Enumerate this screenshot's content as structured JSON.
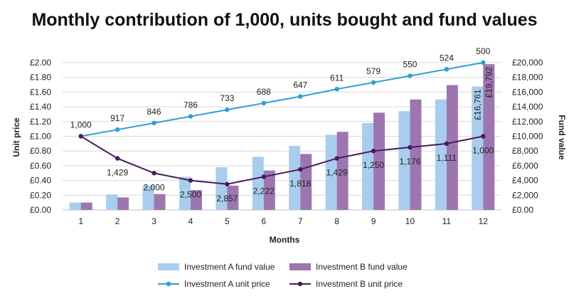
{
  "chart_data": {
    "type": "bar",
    "title": "Monthly contribution of 1,000, units bought and fund values",
    "xlabel": "Months",
    "ylabel": "Unit price",
    "y2label": "Fund value",
    "categories": [
      "1",
      "2",
      "3",
      "4",
      "5",
      "6",
      "7",
      "8",
      "9",
      "10",
      "11",
      "12"
    ],
    "ylim": [
      0,
      2.0
    ],
    "y_ticks": [
      "£0.00",
      "£0.20",
      "£0.40",
      "£0.60",
      "£0.80",
      "£1.00",
      "£1.20",
      "£1.40",
      "£1.60",
      "£1.80",
      "£2.00"
    ],
    "y2lim": [
      0,
      20000
    ],
    "y2_ticks": [
      "£0.00",
      "£2,000",
      "£4,000",
      "£6,000",
      "£8,000",
      "£10,000",
      "£12,000",
      "£14,000",
      "£16,000",
      "£18,000",
      "£20,000"
    ],
    "bar_series": [
      {
        "name": "Investment A fund value",
        "color": "#a9cdee",
        "values": [
          1000,
          2100,
          3300,
          4500,
          5800,
          7200,
          8700,
          10200,
          11800,
          13400,
          15000,
          16761
        ]
      },
      {
        "name": "Investment B fund value",
        "color": "#9d76b0",
        "values": [
          1000,
          1700,
          2150,
          2700,
          3300,
          5350,
          7600,
          10600,
          13200,
          15000,
          16950,
          19792
        ]
      }
    ],
    "line_series": [
      {
        "name": "Investment A unit price",
        "color": "#2e9ed5",
        "values": [
          1.0,
          1.09,
          1.18,
          1.27,
          1.36,
          1.45,
          1.54,
          1.64,
          1.73,
          1.82,
          1.91,
          2.0
        ],
        "labels": [
          "1,000",
          "917",
          "846",
          "786",
          "733",
          "688",
          "647",
          "611",
          "579",
          "550",
          "524",
          "500"
        ]
      },
      {
        "name": "Investment B unit price",
        "color": "#4a1a5e",
        "values": [
          1.0,
          0.7,
          0.5,
          0.4,
          0.35,
          0.45,
          0.55,
          0.7,
          0.8,
          0.85,
          0.9,
          1.0
        ],
        "labels": [
          "1,000",
          "1,429",
          "2,000",
          "2,500",
          "2,857",
          "2,222",
          "1,818",
          "1,429",
          "1,250",
          "1,176",
          "1,111",
          "1,000"
        ]
      }
    ],
    "bar_labels": [
      {
        "series": 0,
        "index": 11,
        "text": "£16,761"
      },
      {
        "series": 1,
        "index": 11,
        "text": "£19,792"
      }
    ],
    "legend": [
      "Investment A fund value",
      "Investment B fund value",
      "Investment A unit price",
      "Investment B unit price"
    ]
  }
}
